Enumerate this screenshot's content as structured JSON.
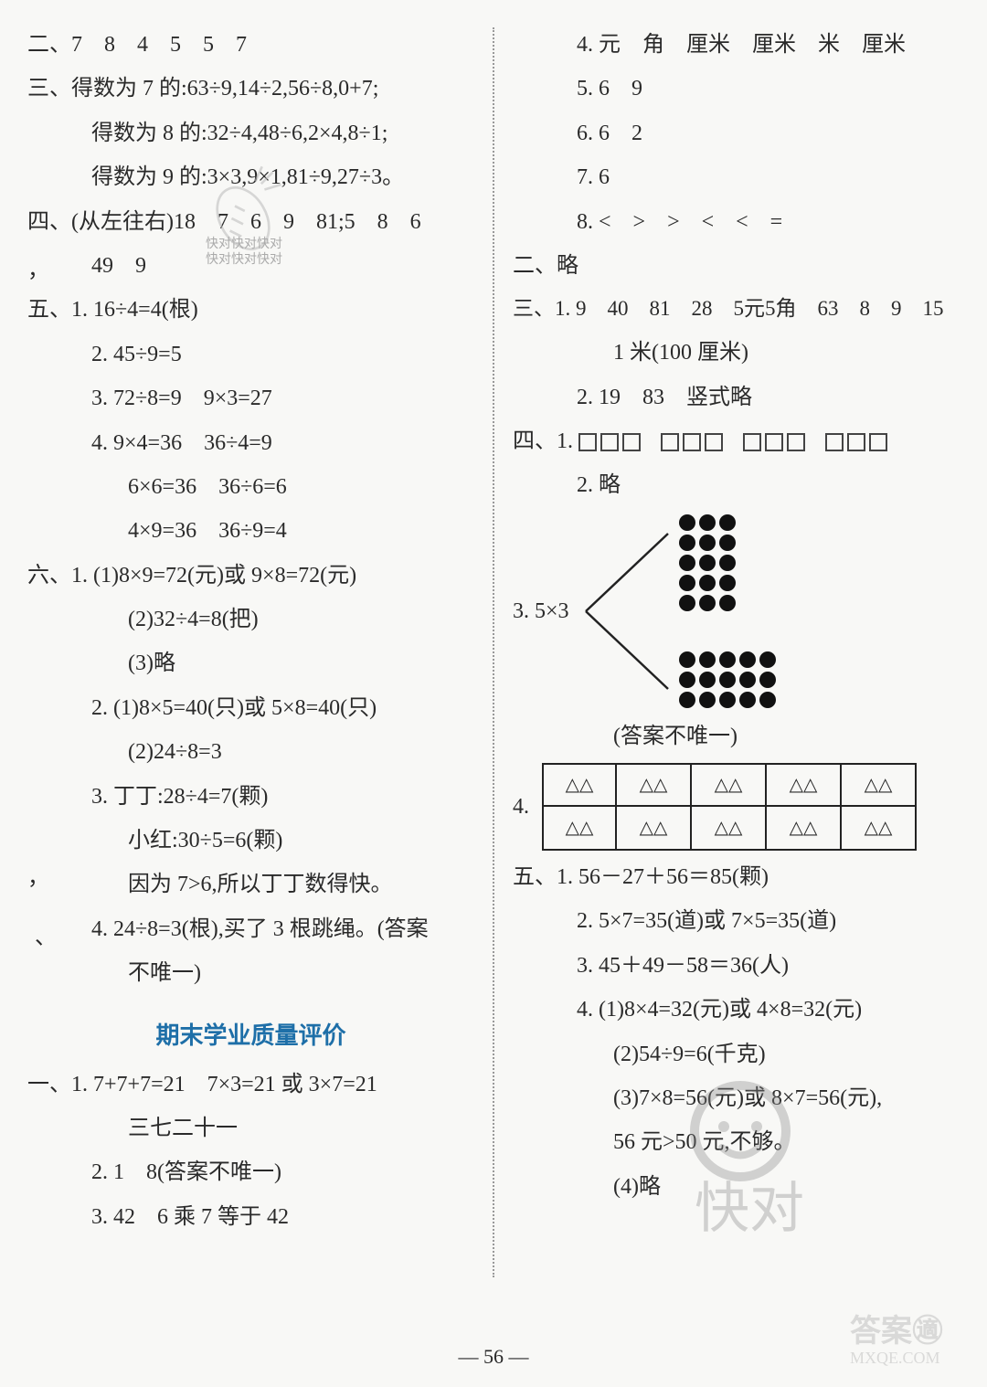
{
  "footer": "— 56 —",
  "left": {
    "l1": "二、7　8　4　5　5　7",
    "l2": "三、得数为 7 的:63÷9,14÷2,56÷8,0+7;",
    "l3": "得数为 8 的:32÷4,48÷6,2×4,8÷1;",
    "l4": "得数为 9 的:3×3,9×1,81÷9,27÷3。",
    "l5": "四、(从左往右)18　7　6　9　81;5　8　6",
    "l6": "49　9",
    "l7": "五、1. 16÷4=4(根)",
    "l8": "2. 45÷9=5",
    "l9": "3. 72÷8=9　9×3=27",
    "l10": "4. 9×4=36　36÷4=9",
    "l11": "6×6=36　36÷6=6",
    "l12": "4×9=36　36÷9=4",
    "l13": "六、1. (1)8×9=72(元)或 9×8=72(元)",
    "l14": "(2)32÷4=8(把)",
    "l15": "(3)略",
    "l16": "2. (1)8×5=40(只)或 5×8=40(只)",
    "l17": "(2)24÷8=3",
    "l18": "3. 丁丁:28÷4=7(颗)",
    "l19": "小红:30÷5=6(颗)",
    "l20": "因为 7>6,所以丁丁数得快。",
    "l21": "4. 24÷8=3(根),买了 3 根跳绳。(答案",
    "l22": "不唯一)",
    "title": "期末学业质量评价",
    "l23": "一、1. 7+7+7=21　7×3=21 或 3×7=21",
    "l24": "三七二十一",
    "l25": "2. 1　8(答案不唯一)",
    "l26": "3. 42　6 乘 7 等于 42",
    "stray1": "，",
    "stray2": "，",
    "stray3": "、",
    "wm_text1": "快对快对快对",
    "wm_text2": "快对快对快对"
  },
  "right": {
    "r1": "4. 元　角　厘米　厘米　米　厘米",
    "r2": "5. 6　9",
    "r3": "6. 6　2",
    "r4": "7. 6",
    "r5": "8. <　>　>　<　<　=",
    "r6": "二、略",
    "r7": "三、1. 9　40　81　28　5元5角　63　8　9　15",
    "r8": "1 米(100 厘米)",
    "r9": "2. 19　83　竖式略",
    "r10": "四、1. ",
    "r11": "2. 略",
    "q3_label": "3. 5×3",
    "q3_note": "(答案不唯一)",
    "q4_label": "4.",
    "tri": "△△",
    "r12": "五、1. 56－27＋56＝85(颗)",
    "r13": "2. 5×7=35(道)或 7×5=35(道)",
    "r14": "3. 45＋49－58＝36(人)",
    "r15": "4. (1)8×4=32(元)或 4×8=32(元)",
    "r16": "(2)54÷9=6(千克)",
    "r17": "(3)7×8=56(元)或 8×7=56(元),",
    "r18": "56 元>50 元,不够。",
    "r19": "(4)略"
  },
  "diagrams": {
    "box_groups": 4,
    "boxes_per_group": 3,
    "dot_top": {
      "rows": 5,
      "cols": 3
    },
    "dot_bottom": {
      "rows": 3,
      "cols": 5
    },
    "tri_table": {
      "rows": 2,
      "cols": 5
    }
  },
  "colors": {
    "text": "#2a2a2a",
    "title": "#1e6fa8",
    "divider": "#999999",
    "bg": "#f8f8f6",
    "dot": "#111111",
    "box_border": "#444444",
    "wm_gray": "#aaaaaa"
  }
}
